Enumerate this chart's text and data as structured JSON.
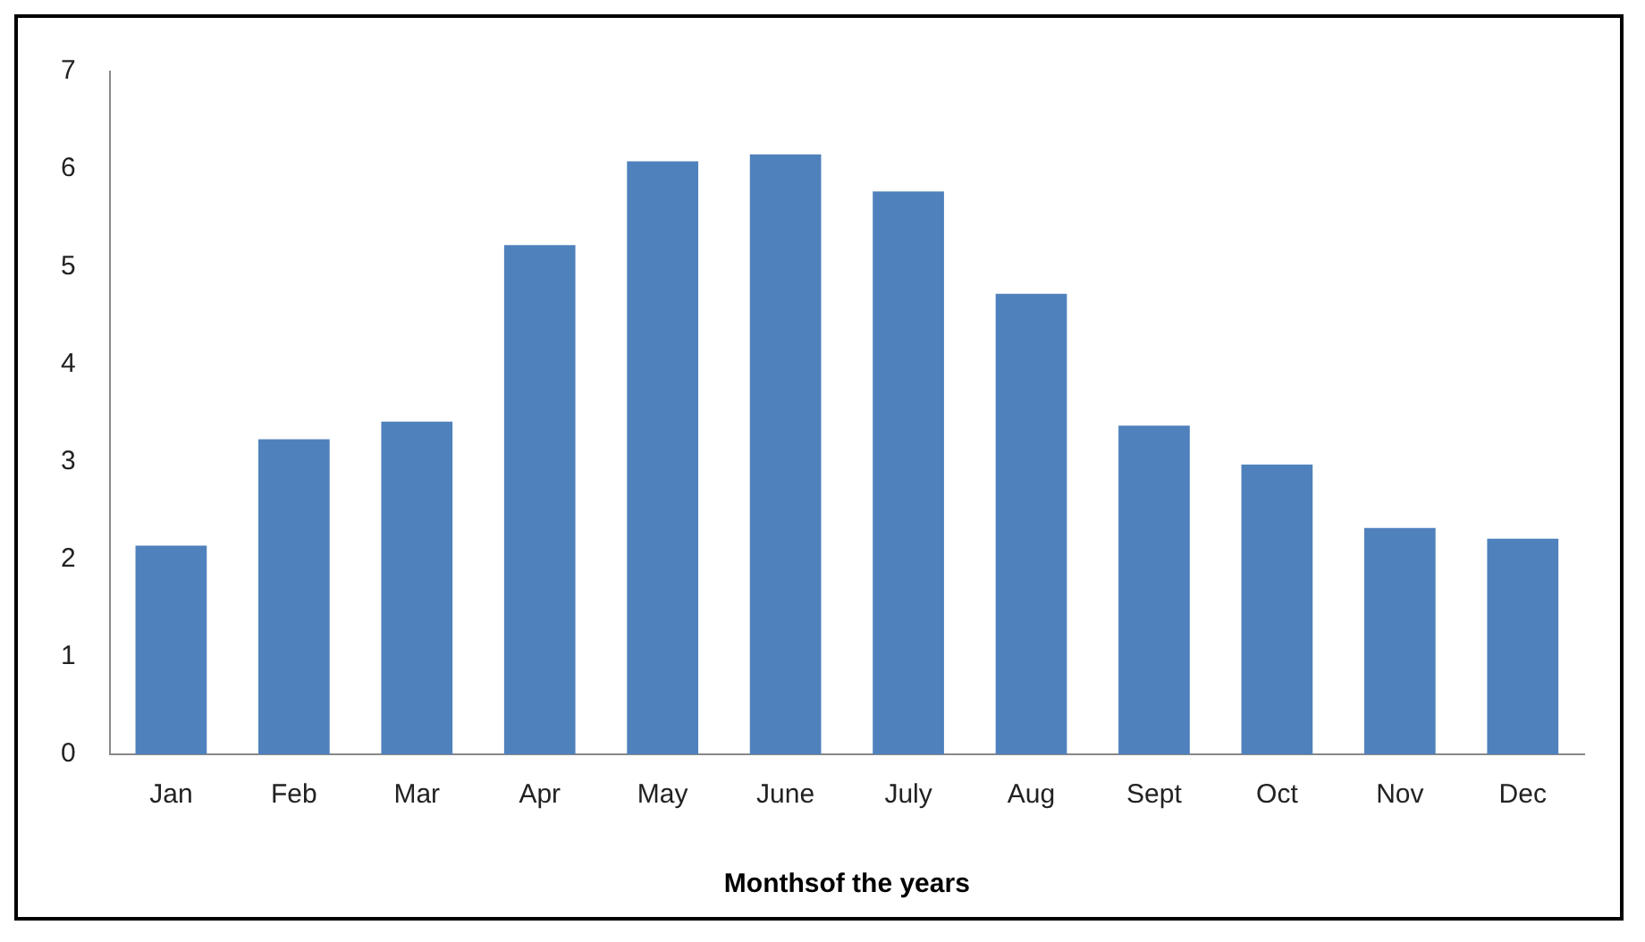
{
  "chart_data": {
    "type": "bar",
    "xlabel": "Monthsof the years",
    "categories": [
      "Jan",
      "Feb",
      "Mar",
      "Apr",
      "May",
      "June",
      "July",
      "Aug",
      "Sept",
      "Oct",
      "Nov",
      "Dec"
    ],
    "values": [
      2.14,
      3.23,
      3.41,
      5.22,
      6.08,
      6.15,
      5.77,
      4.72,
      3.37,
      2.97,
      2.32,
      2.21
    ],
    "color": "#4f81bd",
    "ylim": [
      0,
      7
    ],
    "yticks": [
      0,
      1,
      2,
      3,
      4,
      5,
      6,
      7
    ],
    "grid": false,
    "legend": false
  }
}
